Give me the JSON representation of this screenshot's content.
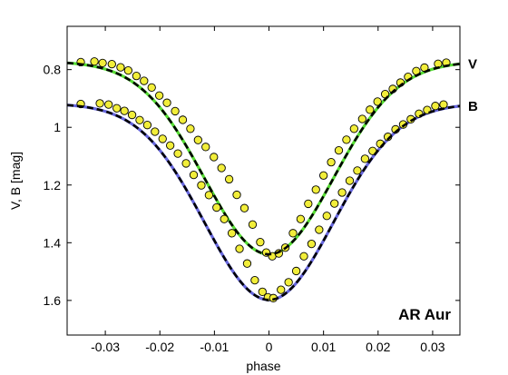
{
  "chart_data": {
    "type": "line",
    "title": "",
    "xlabel": "phase",
    "ylabel": "V, B  [mag]",
    "xlim": [
      -0.037,
      0.035
    ],
    "ylim": [
      1.72,
      0.65
    ],
    "y_inverted": true,
    "grid": false,
    "legend": "none",
    "annotation": "AR Aur",
    "x_ticks": [
      {
        "value": -0.03,
        "label": "-0.03"
      },
      {
        "value": -0.02,
        "label": "-0.02"
      },
      {
        "value": -0.01,
        "label": "-0.01"
      },
      {
        "value": 0,
        "label": "0"
      },
      {
        "value": 0.01,
        "label": "0.01"
      },
      {
        "value": 0.02,
        "label": "0.02"
      },
      {
        "value": 0.03,
        "label": "0.03"
      }
    ],
    "y_ticks": [
      {
        "value": 0.8,
        "label": "0.8"
      },
      {
        "value": 1.0,
        "label": "1"
      },
      {
        "value": 1.2,
        "label": "1.2"
      },
      {
        "value": 1.4,
        "label": "1.4"
      },
      {
        "value": 1.6,
        "label": "1.6"
      }
    ],
    "series": [
      {
        "name": "V",
        "color": "#55dd33",
        "model": {
          "base": 0.772,
          "depth": 0.668,
          "sigma": 0.0118
        },
        "points": [
          [
            -0.0345,
            0.774
          ],
          [
            -0.032,
            0.772
          ],
          [
            -0.0305,
            0.777
          ],
          [
            -0.0288,
            0.781
          ],
          [
            -0.0272,
            0.792
          ],
          [
            -0.0258,
            0.803
          ],
          [
            -0.0243,
            0.822
          ],
          [
            -0.0229,
            0.839
          ],
          [
            -0.0215,
            0.862
          ],
          [
            -0.0201,
            0.89
          ],
          [
            -0.0187,
            0.915
          ],
          [
            -0.0172,
            0.944
          ],
          [
            -0.0158,
            0.974
          ],
          [
            -0.0144,
            1.005
          ],
          [
            -0.013,
            1.044
          ],
          [
            -0.0116,
            1.068
          ],
          [
            -0.0101,
            1.103
          ],
          [
            -0.0087,
            1.141
          ],
          [
            -0.0073,
            1.18
          ],
          [
            -0.0059,
            1.234
          ],
          [
            -0.0045,
            1.28
          ],
          [
            -0.003,
            1.337
          ],
          [
            -0.0016,
            1.398
          ],
          [
            -0.0005,
            1.434
          ],
          [
            0.0006,
            1.447
          ],
          [
            0.0018,
            1.437
          ],
          [
            0.003,
            1.417
          ],
          [
            0.0044,
            1.367
          ],
          [
            0.0058,
            1.318
          ],
          [
            0.0072,
            1.265
          ],
          [
            0.0086,
            1.216
          ],
          [
            0.01,
            1.167
          ],
          [
            0.0114,
            1.121
          ],
          [
            0.0128,
            1.08
          ],
          [
            0.0142,
            1.043
          ],
          [
            0.0156,
            1.005
          ],
          [
            0.0171,
            0.971
          ],
          [
            0.0185,
            0.939
          ],
          [
            0.0199,
            0.911
          ],
          [
            0.0213,
            0.885
          ],
          [
            0.0227,
            0.867
          ],
          [
            0.0241,
            0.845
          ],
          [
            0.0255,
            0.825
          ],
          [
            0.027,
            0.805
          ],
          [
            0.0285,
            0.793
          ],
          [
            0.031,
            0.78
          ],
          [
            0.0325,
            0.776
          ]
        ]
      },
      {
        "name": "B",
        "color": "#6666dd",
        "model": {
          "base": 0.918,
          "depth": 0.68,
          "sigma": 0.0118
        },
        "points": [
          [
            -0.0345,
            0.919
          ],
          [
            -0.031,
            0.917
          ],
          [
            -0.0294,
            0.921
          ],
          [
            -0.0279,
            0.934
          ],
          [
            -0.0265,
            0.943
          ],
          [
            -0.0251,
            0.957
          ],
          [
            -0.0237,
            0.975
          ],
          [
            -0.0223,
            0.992
          ],
          [
            -0.0209,
            1.015
          ],
          [
            -0.0195,
            1.04
          ],
          [
            -0.0181,
            1.063
          ],
          [
            -0.0167,
            1.091
          ],
          [
            -0.0152,
            1.125
          ],
          [
            -0.0138,
            1.165
          ],
          [
            -0.0124,
            1.201
          ],
          [
            -0.011,
            1.235
          ],
          [
            -0.0096,
            1.278
          ],
          [
            -0.0082,
            1.318
          ],
          [
            -0.0068,
            1.367
          ],
          [
            -0.0054,
            1.421
          ],
          [
            -0.004,
            1.472
          ],
          [
            -0.0026,
            1.53
          ],
          [
            -0.0012,
            1.57
          ],
          [
            -0.0002,
            1.589
          ],
          [
            0.0008,
            1.592
          ],
          [
            0.0022,
            1.563
          ],
          [
            0.0036,
            1.537
          ],
          [
            0.005,
            1.498
          ],
          [
            0.0064,
            1.447
          ],
          [
            0.0078,
            1.404
          ],
          [
            0.0092,
            1.355
          ],
          [
            0.0106,
            1.307
          ],
          [
            0.012,
            1.264
          ],
          [
            0.0134,
            1.226
          ],
          [
            0.0148,
            1.185
          ],
          [
            0.0162,
            1.15
          ],
          [
            0.0176,
            1.109
          ],
          [
            0.019,
            1.082
          ],
          [
            0.0204,
            1.057
          ],
          [
            0.0218,
            1.033
          ],
          [
            0.0232,
            1.007
          ],
          [
            0.0246,
            0.99
          ],
          [
            0.026,
            0.972
          ],
          [
            0.0275,
            0.953
          ],
          [
            0.029,
            0.94
          ],
          [
            0.0305,
            0.926
          ],
          [
            0.032,
            0.921
          ]
        ]
      }
    ]
  }
}
